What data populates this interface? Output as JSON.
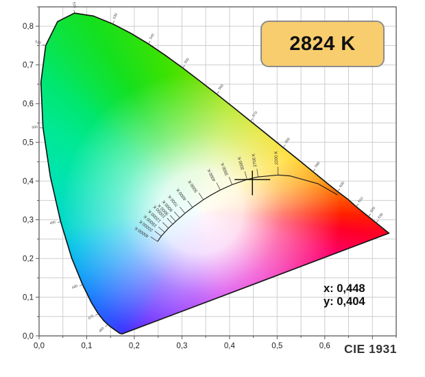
{
  "badge": {
    "label": "2824 K"
  },
  "readout": {
    "x_line": "x: 0,448",
    "y_line": "y: 0,404"
  },
  "footer": {
    "label": "CIE 1931"
  },
  "axes": {
    "x_tick_labels": [
      "0,0",
      "0,1",
      "0,2",
      "0,3",
      "0,4",
      "0,5",
      "0,6"
    ],
    "y_tick_labels": [
      "0,0",
      "0,1",
      "0,2",
      "0,3",
      "0,4",
      "0,5",
      "0,6",
      "0,7",
      "0,8"
    ]
  },
  "colors": {
    "badge_fill": "#F8CD6E",
    "badge_border": "#8C8C8C",
    "grid": "#CDCDCD",
    "plot_border": "#6F6F6F",
    "locus_outline": "#151515",
    "planckian_curve": "#1B1B1B",
    "marker": "#000000",
    "tick_text": "#4A4A4A",
    "axis_text": "#222222",
    "conic_stops": [
      [
        "#6FE000",
        0
      ],
      [
        "#A8E400",
        15
      ],
      [
        "#DCDF00",
        36
      ],
      [
        "#FFD500",
        58
      ],
      [
        "#FF9C00",
        74
      ],
      [
        "#FF5A00",
        84
      ],
      [
        "#FF2000",
        91
      ],
      [
        "#FF0025",
        97
      ],
      [
        "#FF0066",
        107
      ],
      [
        "#EC00BE",
        138
      ],
      [
        "#C800E8",
        165
      ],
      [
        "#9000F8",
        183
      ],
      [
        "#5C20FF",
        207
      ],
      [
        "#3A3CFF",
        214
      ],
      [
        "#2468FF",
        226
      ],
      [
        "#0E98F8",
        240
      ],
      [
        "#00C2E8",
        255
      ],
      [
        "#00D8CC",
        264
      ],
      [
        "#00E4B0",
        283
      ],
      [
        "#00E894",
        299
      ],
      [
        "#00E670",
        311
      ],
      [
        "#0AE44A",
        319
      ],
      [
        "#14E01E",
        330
      ],
      [
        "#3FE200",
        347
      ],
      [
        "#6FE000",
        360
      ]
    ]
  },
  "chart_data": {
    "type": "chromaticity-diagram",
    "title": "CIE 1931",
    "cct_readout": "2824 K",
    "marker": {
      "x": 0.448,
      "y": 0.404
    },
    "xlim": [
      0,
      0.75
    ],
    "ylim": [
      0,
      0.85
    ],
    "grid_step": 0.05,
    "x_ticks": [
      0,
      0.1,
      0.2,
      0.3,
      0.4,
      0.5,
      0.6
    ],
    "y_ticks": [
      0,
      0.1,
      0.2,
      0.3,
      0.4,
      0.5,
      0.6,
      0.7,
      0.8
    ],
    "white_point": {
      "x": 0.34,
      "y": 0.32
    },
    "spectral_locus": [
      [
        380,
        0.1741,
        0.005
      ],
      [
        430,
        0.1689,
        0.0069
      ],
      [
        440,
        0.1644,
        0.0109
      ],
      [
        450,
        0.1566,
        0.0177
      ],
      [
        455,
        0.151,
        0.0227
      ],
      [
        460,
        0.144,
        0.0297
      ],
      [
        465,
        0.1355,
        0.0399
      ],
      [
        470,
        0.1241,
        0.0578
      ],
      [
        475,
        0.1096,
        0.0868
      ],
      [
        480,
        0.0913,
        0.1327
      ],
      [
        485,
        0.0687,
        0.2007
      ],
      [
        490,
        0.0454,
        0.295
      ],
      [
        495,
        0.0235,
        0.4127
      ],
      [
        500,
        0.0082,
        0.5384
      ],
      [
        505,
        0.0039,
        0.6548
      ],
      [
        510,
        0.0139,
        0.7502
      ],
      [
        515,
        0.0389,
        0.812
      ],
      [
        520,
        0.0743,
        0.8338
      ],
      [
        525,
        0.1142,
        0.8262
      ],
      [
        530,
        0.1547,
        0.8059
      ],
      [
        535,
        0.1929,
        0.7816
      ],
      [
        540,
        0.2296,
        0.7543
      ],
      [
        545,
        0.2658,
        0.7243
      ],
      [
        550,
        0.3016,
        0.6923
      ],
      [
        555,
        0.3373,
        0.6588
      ],
      [
        560,
        0.3731,
        0.6245
      ],
      [
        565,
        0.4087,
        0.5896
      ],
      [
        570,
        0.4441,
        0.5547
      ],
      [
        575,
        0.4788,
        0.5202
      ],
      [
        580,
        0.5125,
        0.4866
      ],
      [
        585,
        0.5448,
        0.4548
      ],
      [
        590,
        0.5752,
        0.4242
      ],
      [
        595,
        0.6029,
        0.3965
      ],
      [
        600,
        0.627,
        0.3725
      ],
      [
        605,
        0.6482,
        0.3533
      ],
      [
        610,
        0.6658,
        0.334
      ],
      [
        615,
        0.6801,
        0.3197
      ],
      [
        620,
        0.6915,
        0.3083
      ],
      [
        625,
        0.7006,
        0.2993
      ],
      [
        630,
        0.7079,
        0.292
      ],
      [
        640,
        0.719,
        0.2809
      ],
      [
        650,
        0.726,
        0.274
      ],
      [
        700,
        0.7347,
        0.2653
      ]
    ],
    "wavelength_labels": [
      "460",
      "470",
      "480",
      "490",
      "500",
      "510",
      "520",
      "530",
      "540",
      "550",
      "560",
      "570",
      "580",
      "590",
      "600",
      "610",
      "620",
      "630"
    ],
    "planckian_locus": [
      [
        40000,
        0.2487,
        0.2438
      ],
      [
        20000,
        0.2565,
        0.2577
      ],
      [
        15000,
        0.2637,
        0.2673
      ],
      [
        12000,
        0.2717,
        0.2784
      ],
      [
        10000,
        0.2807,
        0.2884
      ],
      [
        9000,
        0.2869,
        0.2956
      ],
      [
        8000,
        0.2952,
        0.3048
      ],
      [
        7000,
        0.3064,
        0.3166
      ],
      [
        6000,
        0.3221,
        0.3318
      ],
      [
        5000,
        0.3451,
        0.3516
      ],
      [
        4500,
        0.3608,
        0.3636
      ],
      [
        4000,
        0.3805,
        0.3768
      ],
      [
        3500,
        0.4053,
        0.3907
      ],
      [
        3000,
        0.4369,
        0.4041
      ],
      [
        2700,
        0.4599,
        0.4106
      ],
      [
        2200,
        0.502,
        0.4156
      ],
      [
        2000,
        0.5267,
        0.4133
      ],
      [
        1500,
        0.5857,
        0.3931
      ],
      [
        1200,
        0.627,
        0.364
      ]
    ],
    "cct_labels": [
      {
        "t": 40000,
        "label": "40000 K"
      },
      {
        "t": 20000,
        "label": "20000 K"
      },
      {
        "t": 15000,
        "label": "15000 K"
      },
      {
        "t": 12000,
        "label": "12000 K"
      },
      {
        "t": 10000,
        "label": "10000 K"
      },
      {
        "t": 9000,
        "label": "9000 K"
      },
      {
        "t": 8000,
        "label": "8000 K"
      },
      {
        "t": 7000,
        "label": "7000 K"
      },
      {
        "t": 6000,
        "label": "6000 K"
      },
      {
        "t": 5000,
        "label": "5000 K"
      },
      {
        "t": 4000,
        "label": "4000 K"
      },
      {
        "t": 3500,
        "label": "3500 K"
      },
      {
        "t": 3000,
        "label": "3000 K"
      },
      {
        "t": 2700,
        "label": "2700 K"
      },
      {
        "t": 2200,
        "label": "2200 K"
      }
    ]
  }
}
